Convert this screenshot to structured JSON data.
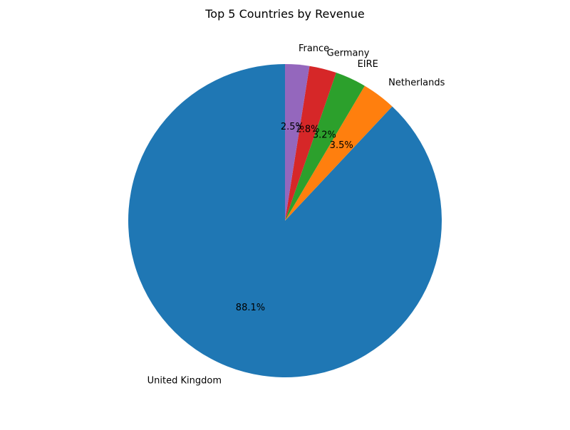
{
  "chart_data": {
    "type": "pie",
    "title": "Top 5 Countries by Revenue",
    "categories": [
      "United Kingdom",
      "Netherlands",
      "EIRE",
      "Germany",
      "France"
    ],
    "values": [
      88.1,
      3.5,
      3.2,
      2.8,
      2.5
    ],
    "value_labels": [
      "88.1%",
      "3.5%",
      "3.2%",
      "2.8%",
      "2.5%"
    ],
    "colors": [
      "#1f77b4",
      "#ff7f0e",
      "#2ca02c",
      "#d62728",
      "#9467bd"
    ],
    "start_angle_deg": 90,
    "direction": "counterclockwise",
    "legend": "none"
  }
}
